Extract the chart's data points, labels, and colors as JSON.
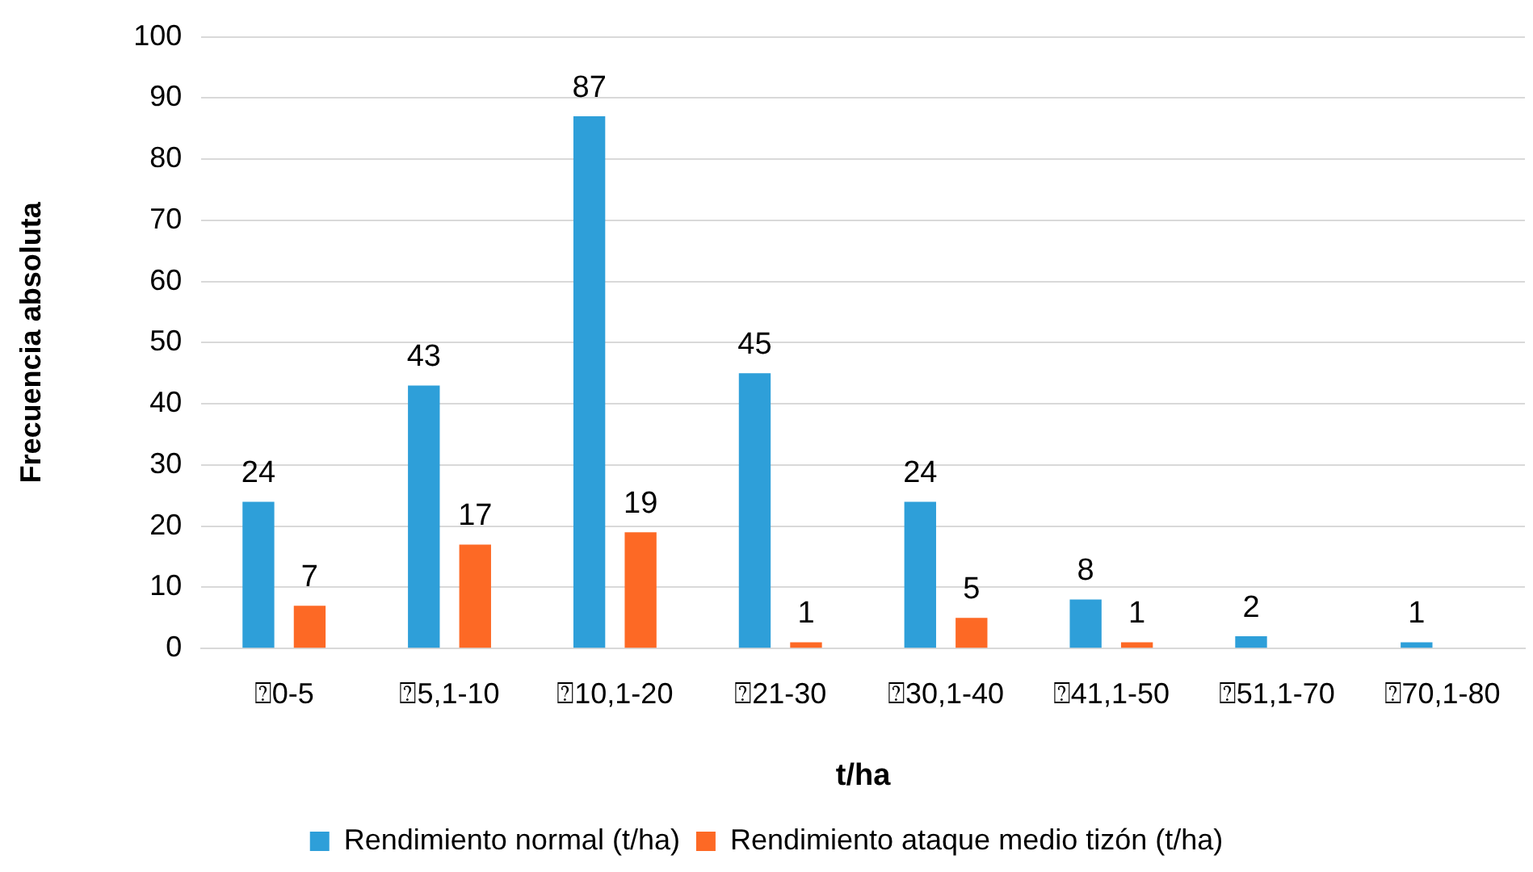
{
  "chart_data": {
    "type": "bar",
    "xlabel": "t/ha",
    "ylabel": "Frecuencia absoluta",
    "categories": [
      "⍰0-5",
      "⍰5,1-10",
      "⍰10,1-20",
      "⍰21-30",
      "⍰30,1-40",
      "⍰41,1-50",
      "⍰51,1-70",
      "⍰70,1-80"
    ],
    "series": [
      {
        "name": "Rendimiento normal (t/ha)",
        "color": "#2e9fd9",
        "values": [
          24,
          43,
          87,
          45,
          24,
          8,
          2,
          1
        ]
      },
      {
        "name": "Rendimiento ataque medio tizón (t/ha)",
        "color": "#fd6925",
        "values": [
          7,
          17,
          19,
          1,
          5,
          1,
          null,
          null
        ]
      }
    ],
    "ylim": [
      0,
      100
    ],
    "yticks": [
      0,
      10,
      20,
      30,
      40,
      50,
      60,
      70,
      80,
      90,
      100
    ],
    "grid": "y",
    "legend": "bottom",
    "data_labels": true
  }
}
